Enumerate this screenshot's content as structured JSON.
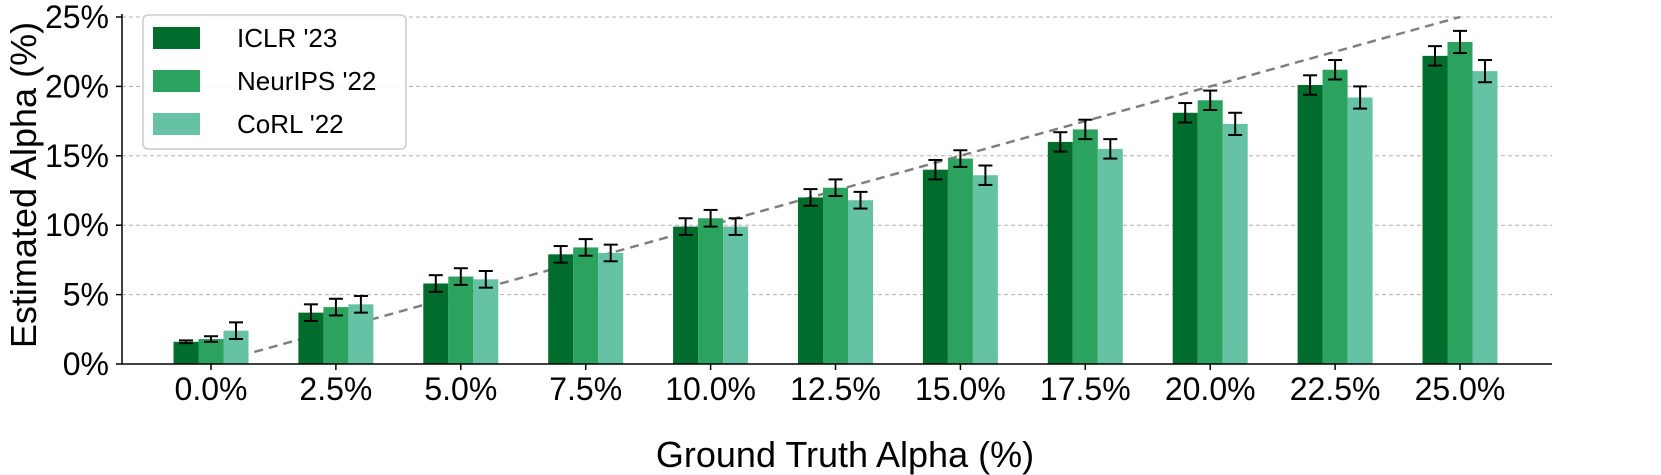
{
  "chart_data": {
    "type": "bar",
    "categories": [
      "0.0%",
      "2.5%",
      "5.0%",
      "7.5%",
      "10.0%",
      "12.5%",
      "15.0%",
      "17.5%",
      "20.0%",
      "22.5%",
      "25.0%"
    ],
    "series": [
      {
        "name": "ICLR '23",
        "color": "#006d2c",
        "values": [
          1.6,
          3.7,
          5.8,
          7.9,
          9.9,
          12.0,
          14.0,
          16.0,
          18.1,
          20.1,
          22.2
        ],
        "errors": [
          0.1,
          0.6,
          0.6,
          0.6,
          0.6,
          0.6,
          0.7,
          0.7,
          0.7,
          0.7,
          0.7
        ]
      },
      {
        "name": "NeurIPS '22",
        "color": "#2ca25f",
        "values": [
          1.8,
          4.1,
          6.3,
          8.4,
          10.5,
          12.7,
          14.8,
          16.9,
          19.0,
          21.2,
          23.2
        ],
        "errors": [
          0.2,
          0.6,
          0.6,
          0.6,
          0.6,
          0.6,
          0.6,
          0.7,
          0.7,
          0.7,
          0.8
        ]
      },
      {
        "name": "CoRL '22",
        "color": "#66c2a4",
        "values": [
          2.4,
          4.3,
          6.1,
          8.0,
          9.9,
          11.8,
          13.6,
          15.5,
          17.3,
          19.2,
          21.1
        ],
        "errors": [
          0.6,
          0.6,
          0.6,
          0.6,
          0.6,
          0.6,
          0.7,
          0.7,
          0.8,
          0.8,
          0.8
        ]
      }
    ],
    "reference_line": {
      "x": [
        0.0,
        25.0
      ],
      "y": [
        0.0,
        25.0
      ],
      "style": "dashed",
      "color": "#808080"
    },
    "xlabel": "Ground Truth Alpha (%)",
    "ylabel": "Estimated Alpha (%)",
    "ylim": [
      0,
      25
    ],
    "yticks": [
      "0%",
      "5%",
      "10%",
      "15%",
      "20%",
      "25%"
    ],
    "grid": "horizontal-dashed",
    "legend": "top-left"
  }
}
